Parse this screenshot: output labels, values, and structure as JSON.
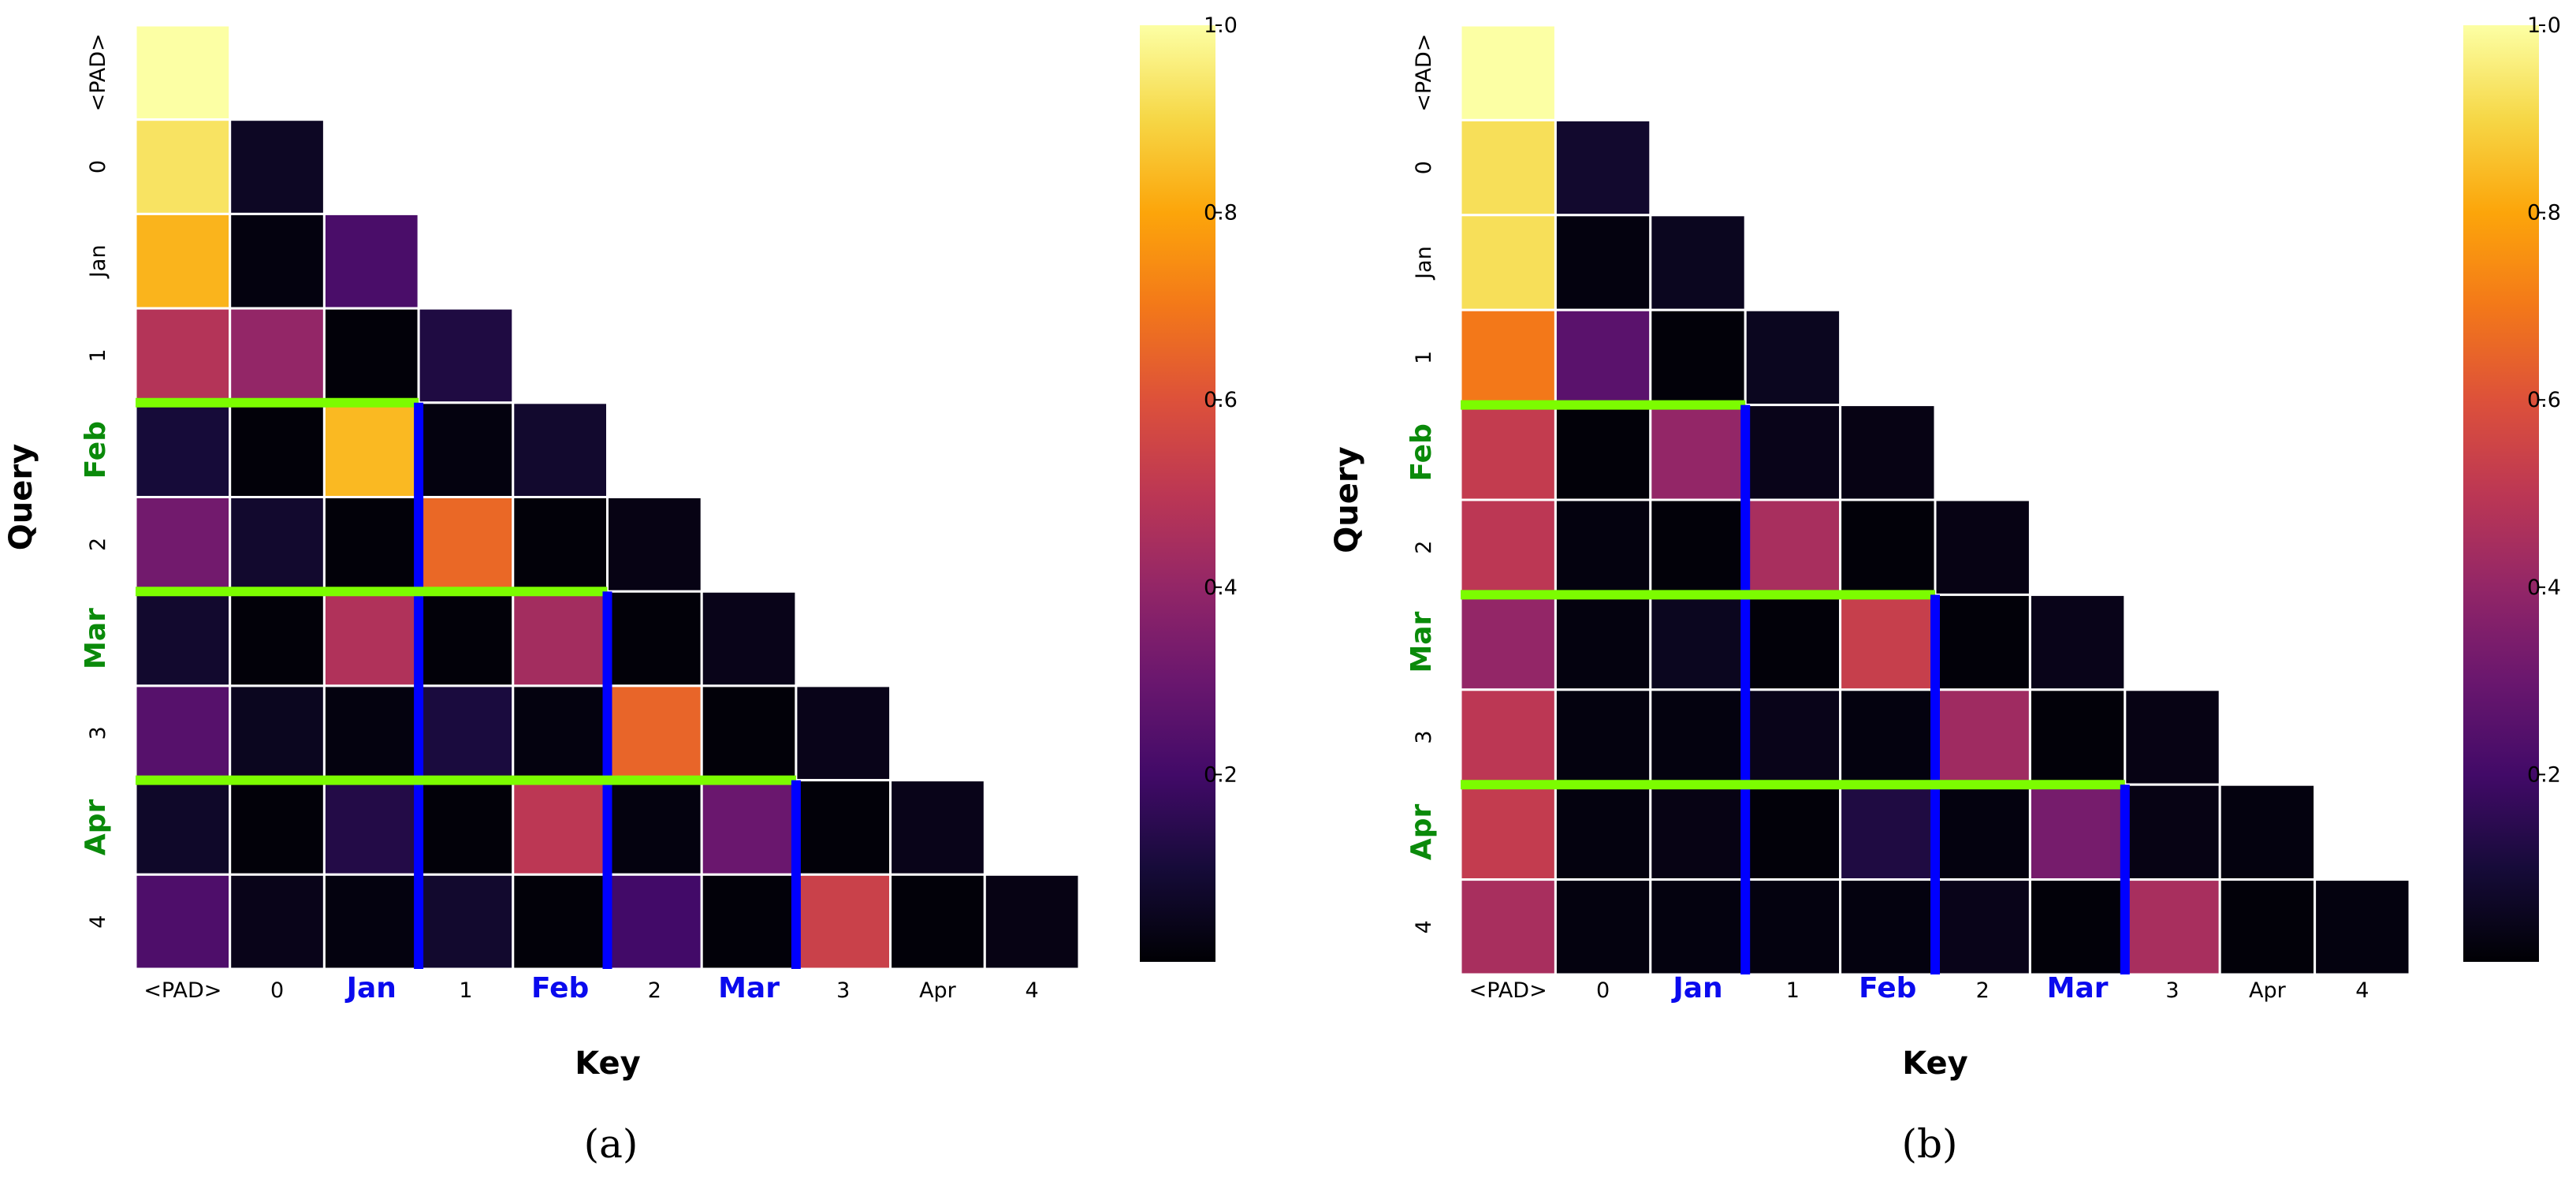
{
  "colors": {
    "colormap": "inferno",
    "horizontal_marker": "#7cfc00",
    "vertical_marker": "#0000ff",
    "highlight_x_label": "#0a0aee",
    "highlight_y_label": "#0a8a0a",
    "grid": "#ffffff"
  },
  "chart_data": [
    {
      "type": "heatmap",
      "caption": "(a)",
      "xlabel": "Key",
      "ylabel": "Query",
      "labels": [
        "<PAD>",
        "0",
        "Jan",
        "1",
        "Feb",
        "2",
        "Mar",
        "3",
        "Apr",
        "4"
      ],
      "highlight_x": [
        "Jan",
        "Feb",
        "Mar"
      ],
      "highlight_y": [
        "Feb",
        "Mar",
        "Apr"
      ],
      "colorbar": {
        "min": 0,
        "max": 1,
        "ticks": [
          "0.2",
          "0.4",
          "0.6",
          "0.8",
          "1.0"
        ]
      },
      "mask": "upper-triangle",
      "markers": [
        {
          "row": "Feb",
          "col": "Jan"
        },
        {
          "row": "Mar",
          "col": "Feb"
        },
        {
          "row": "Apr",
          "col": "Mar"
        }
      ],
      "matrix": [
        [
          1.0
        ],
        [
          0.93,
          0.06
        ],
        [
          0.83,
          0.02,
          0.22
        ],
        [
          0.48,
          0.4,
          0.01,
          0.12
        ],
        [
          0.1,
          0.01,
          0.84,
          0.02,
          0.08
        ],
        [
          0.32,
          0.08,
          0.01,
          0.66,
          0.01,
          0.03
        ],
        [
          0.08,
          0.01,
          0.47,
          0.01,
          0.44,
          0.01,
          0.04
        ],
        [
          0.25,
          0.05,
          0.02,
          0.11,
          0.02,
          0.65,
          0.01,
          0.04
        ],
        [
          0.07,
          0.01,
          0.13,
          0.01,
          0.5,
          0.02,
          0.3,
          0.01,
          0.04
        ],
        [
          0.23,
          0.04,
          0.02,
          0.08,
          0.01,
          0.2,
          0.01,
          0.54,
          0.01,
          0.03
        ]
      ]
    },
    {
      "type": "heatmap",
      "caption": "(b)",
      "xlabel": "Key",
      "ylabel": "Query",
      "labels": [
        "<PAD>",
        "0",
        "Jan",
        "1",
        "Feb",
        "2",
        "Mar",
        "3",
        "Apr",
        "4"
      ],
      "highlight_x": [
        "Jan",
        "Feb",
        "Mar"
      ],
      "highlight_y": [
        "Feb",
        "Mar",
        "Apr"
      ],
      "colorbar": {
        "min": 0,
        "max": 1,
        "ticks": [
          "0.2",
          "0.4",
          "0.6",
          "0.8",
          "1.0"
        ]
      },
      "mask": "upper-triangle",
      "markers": [
        {
          "row": "Feb",
          "col": "Jan"
        },
        {
          "row": "Mar",
          "col": "Feb"
        },
        {
          "row": "Apr",
          "col": "Mar"
        }
      ],
      "matrix": [
        [
          1.0
        ],
        [
          0.92,
          0.08
        ],
        [
          0.92,
          0.02,
          0.05
        ],
        [
          0.7,
          0.26,
          0.01,
          0.05
        ],
        [
          0.52,
          0.01,
          0.4,
          0.04,
          0.03
        ],
        [
          0.5,
          0.02,
          0.01,
          0.45,
          0.01,
          0.03
        ],
        [
          0.4,
          0.02,
          0.05,
          0.01,
          0.53,
          0.01,
          0.04
        ],
        [
          0.5,
          0.02,
          0.02,
          0.04,
          0.02,
          0.43,
          0.01,
          0.03
        ],
        [
          0.52,
          0.02,
          0.03,
          0.01,
          0.12,
          0.02,
          0.33,
          0.03,
          0.02
        ],
        [
          0.45,
          0.02,
          0.02,
          0.02,
          0.02,
          0.04,
          0.01,
          0.45,
          0.01,
          0.02
        ]
      ]
    }
  ]
}
